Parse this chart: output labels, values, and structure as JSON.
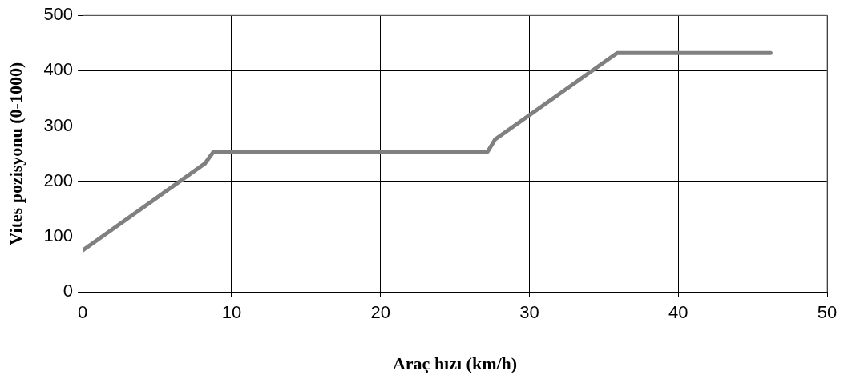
{
  "chart_data": {
    "type": "line",
    "xlabel": "Araç hızı (km/h)",
    "ylabel": "Vites pozisyonu (0-1000)",
    "series": [
      {
        "color": "#808080",
        "x": [
          0,
          8.2,
          8.8,
          27.2,
          27.7,
          35.9,
          46.2
        ],
        "values": [
          75,
          232,
          254,
          254,
          276,
          432,
          432
        ]
      }
    ],
    "xlim": [
      0,
      50
    ],
    "xticks": [
      0,
      10,
      20,
      30,
      40,
      50
    ],
    "ylim": [
      0,
      500
    ],
    "yticks": [
      0,
      100,
      200,
      300,
      400,
      500
    ],
    "grid": true,
    "legend": false,
    "marker": "none",
    "line_style": "solid"
  }
}
